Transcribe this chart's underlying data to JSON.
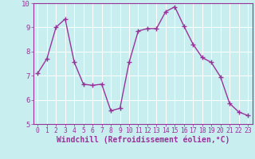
{
  "x": [
    0,
    1,
    2,
    3,
    4,
    5,
    6,
    7,
    8,
    9,
    10,
    11,
    12,
    13,
    14,
    15,
    16,
    17,
    18,
    19,
    20,
    21,
    22,
    23
  ],
  "y": [
    7.1,
    7.7,
    9.0,
    9.35,
    7.55,
    6.65,
    6.6,
    6.65,
    5.55,
    5.65,
    7.55,
    8.85,
    8.95,
    8.95,
    9.65,
    9.85,
    9.05,
    8.3,
    7.75,
    7.55,
    6.95,
    5.85,
    5.5,
    5.35
  ],
  "line_color": "#993399",
  "marker": "+",
  "marker_size": 4,
  "marker_linewidth": 1.0,
  "xlabel": "Windchill (Refroidissement éolien,°C)",
  "xlabel_fontsize": 7,
  "ylim": [
    5,
    10
  ],
  "xlim": [
    -0.5,
    23.5
  ],
  "yticks": [
    5,
    6,
    7,
    8,
    9,
    10
  ],
  "xticks": [
    0,
    1,
    2,
    3,
    4,
    5,
    6,
    7,
    8,
    9,
    10,
    11,
    12,
    13,
    14,
    15,
    16,
    17,
    18,
    19,
    20,
    21,
    22,
    23
  ],
  "bg_color": "#c8eef0",
  "grid_color": "#aadddd",
  "tick_label_fontsize": 6.5,
  "tick_color": "#993399",
  "label_color": "#993399",
  "line_width": 1.0,
  "spine_color": "#993399"
}
